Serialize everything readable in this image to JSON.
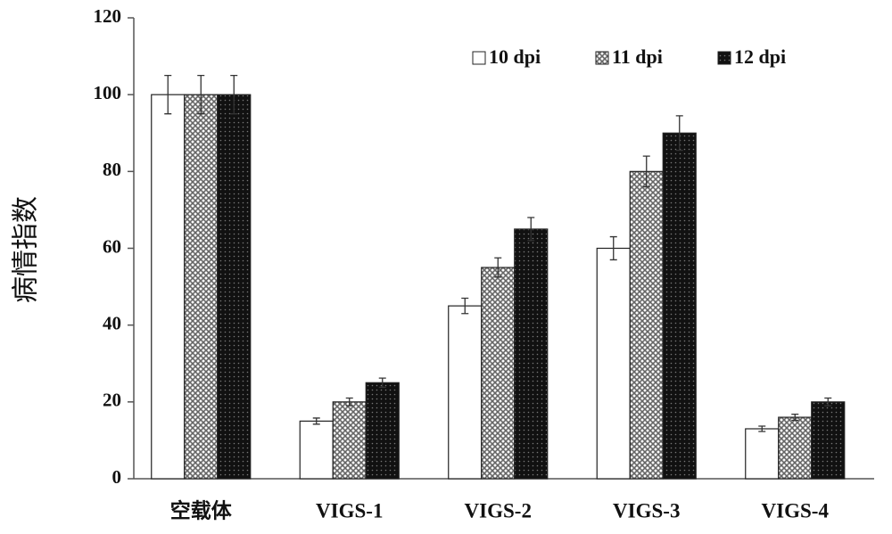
{
  "chart_data": {
    "type": "bar",
    "y_label": "病情指数",
    "categories": [
      "空载体",
      "VIGS-1",
      "VIGS-2",
      "VIGS-3",
      "VIGS-4"
    ],
    "series": [
      {
        "name": "10 dpi",
        "color": "#ffffff",
        "pattern": "solid",
        "values": [
          100,
          15,
          45,
          60,
          13
        ],
        "errors": [
          5,
          0.8,
          2,
          3,
          0.7
        ]
      },
      {
        "name": "11 dpi",
        "color": "#9a9a9a",
        "pattern": "crosshatch",
        "values": [
          100,
          20,
          55,
          80,
          16
        ],
        "errors": [
          5,
          1,
          2.5,
          4,
          0.8
        ]
      },
      {
        "name": "12 dpi",
        "color": "#111111",
        "pattern": "dots",
        "values": [
          100,
          25,
          65,
          90,
          20
        ],
        "errors": [
          5,
          1.2,
          3,
          4.5,
          1
        ]
      }
    ],
    "ylim": [
      0,
      120
    ],
    "yticks": [
      0,
      20,
      40,
      60,
      80,
      100,
      120
    ],
    "legend": "top-right"
  }
}
